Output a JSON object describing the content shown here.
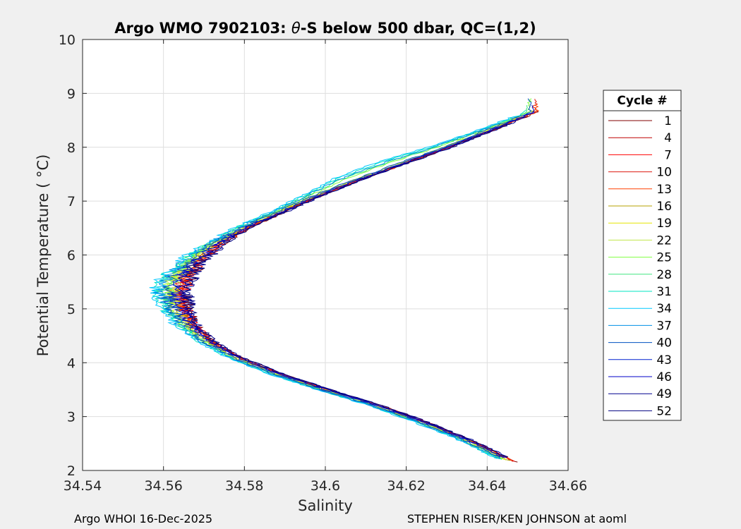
{
  "chart_data": {
    "type": "line",
    "title": "Argo WMO 7902103: θ-S below 500 dbar,  QC=(1,2)",
    "title_prefix": "Argo WMO 7902103: ",
    "title_theta": "θ",
    "title_suffix": "-S below 500 dbar,  QC=(1,2)",
    "xlabel": "Salinity",
    "ylabel": "Potential Temperature ( °C)",
    "xlim": [
      34.54,
      34.66
    ],
    "ylim": [
      2,
      10
    ],
    "x_ticks": [
      34.54,
      34.56,
      34.58,
      34.6,
      34.62,
      34.64,
      34.66
    ],
    "x_tick_labels": [
      "34.54",
      "34.56",
      "34.58",
      "34.6",
      "34.62",
      "34.64",
      "34.66"
    ],
    "y_ticks": [
      2,
      3,
      4,
      5,
      6,
      7,
      8,
      9,
      10
    ],
    "y_tick_labels": [
      "2",
      "3",
      "4",
      "5",
      "6",
      "7",
      "8",
      "9",
      "10"
    ],
    "grid": true,
    "legend": {
      "title": "Cycle #",
      "placement": "right-outside",
      "entries": [
        {
          "label": "1",
          "color": "#800000"
        },
        {
          "label": "4",
          "color": "#bf0000"
        },
        {
          "label": "7",
          "color": "#ff0000"
        },
        {
          "label": "10",
          "color": "#dd1a10"
        },
        {
          "label": "13",
          "color": "#ff4000"
        },
        {
          "label": "16",
          "color": "#b5a000"
        },
        {
          "label": "19",
          "color": "#e6e600"
        },
        {
          "label": "22",
          "color": "#c0e64a"
        },
        {
          "label": "25",
          "color": "#80ff40"
        },
        {
          "label": "28",
          "color": "#40e680"
        },
        {
          "label": "31",
          "color": "#00e6c0"
        },
        {
          "label": "34",
          "color": "#00c8ff"
        },
        {
          "label": "37",
          "color": "#0090e6"
        },
        {
          "label": "40",
          "color": "#0050c0"
        },
        {
          "label": "43",
          "color": "#0020d0"
        },
        {
          "label": "46",
          "color": "#0000c8"
        },
        {
          "label": "49",
          "color": "#00008f"
        },
        {
          "label": "52",
          "color": "#000080"
        }
      ]
    },
    "base_profile": [
      [
        34.6465,
        2.15
      ],
      [
        34.641,
        2.35
      ],
      [
        34.634,
        2.6
      ],
      [
        34.624,
        2.9
      ],
      [
        34.613,
        3.2
      ],
      [
        34.6,
        3.5
      ],
      [
        34.588,
        3.8
      ],
      [
        34.578,
        4.1
      ],
      [
        34.571,
        4.4
      ],
      [
        34.5665,
        4.7
      ],
      [
        34.564,
        5.0
      ],
      [
        34.563,
        5.3
      ],
      [
        34.5645,
        5.6
      ],
      [
        34.568,
        5.9
      ],
      [
        34.573,
        6.2
      ],
      [
        34.58,
        6.5
      ],
      [
        34.589,
        6.8
      ],
      [
        34.598,
        7.1
      ],
      [
        34.608,
        7.4
      ],
      [
        34.619,
        7.7
      ],
      [
        34.63,
        8.0
      ],
      [
        34.64,
        8.3
      ],
      [
        34.6515,
        8.65
      ]
    ],
    "series": [
      {
        "name": "1",
        "dx": 0.0015
      },
      {
        "name": "4",
        "dx": 0.0008
      },
      {
        "name": "7",
        "dx": 0.0012
      },
      {
        "name": "10",
        "dx": 0.0005
      },
      {
        "name": "13",
        "dx": 0.001
      },
      {
        "name": "16",
        "dx": -0.0004
      },
      {
        "name": "19",
        "dx": -0.0008
      },
      {
        "name": "22",
        "dx": -0.0012
      },
      {
        "name": "25",
        "dx": -0.0018
      },
      {
        "name": "28",
        "dx": -0.0022
      },
      {
        "name": "31",
        "dx": -0.003
      },
      {
        "name": "34",
        "dx": -0.0035
      },
      {
        "name": "37",
        "dx": -0.0025
      },
      {
        "name": "40",
        "dx": -0.0015
      },
      {
        "name": "43",
        "dx": 0.0
      },
      {
        "name": "46",
        "dx": 0.0005
      },
      {
        "name": "49",
        "dx": 0.002
      },
      {
        "name": "52",
        "dx": 0.0018
      }
    ]
  },
  "footer": {
    "left": "Argo WHOI 16-Dec-2025",
    "right": "STEPHEN RISER/KEN JOHNSON at aoml"
  }
}
